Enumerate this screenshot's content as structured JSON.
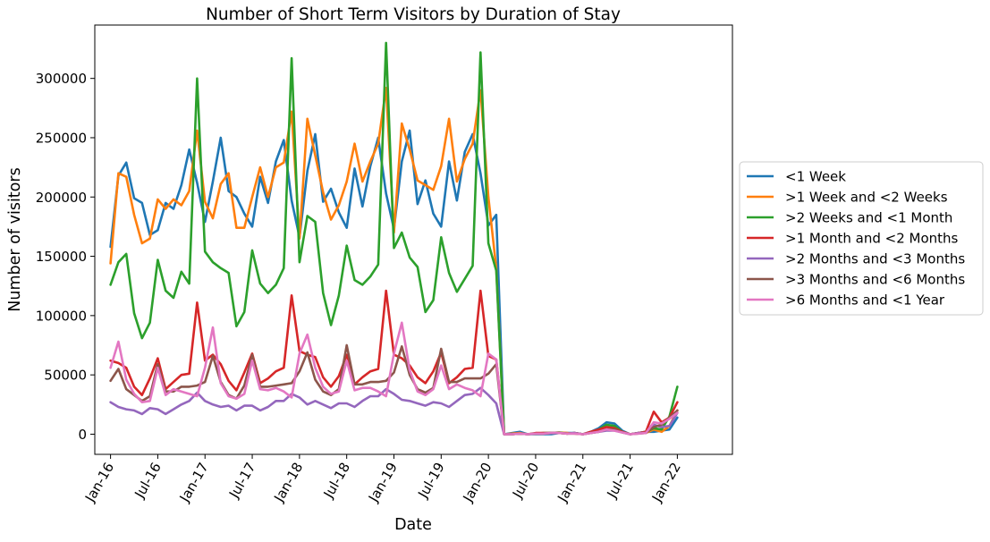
{
  "chart_data": {
    "type": "line",
    "title": "Number of Short Term Visitors by Duration of Stay",
    "xlabel": "Date",
    "ylabel": "Number of visitors",
    "x_start": "2016-01",
    "xlim": [
      "2015-11",
      "2022-08"
    ],
    "ylim": [
      -17000,
      345000
    ],
    "x_ticks": [
      {
        "date": "2016-01",
        "label": "Jan-16"
      },
      {
        "date": "2016-07",
        "label": "Jul-16"
      },
      {
        "date": "2017-01",
        "label": "Jan-17"
      },
      {
        "date": "2017-07",
        "label": "Jul-17"
      },
      {
        "date": "2018-01",
        "label": "Jan-18"
      },
      {
        "date": "2018-07",
        "label": "Jul-18"
      },
      {
        "date": "2019-01",
        "label": "Jan-19"
      },
      {
        "date": "2019-07",
        "label": "Jul-19"
      },
      {
        "date": "2020-01",
        "label": "Jan-20"
      },
      {
        "date": "2020-07",
        "label": "Jul-20"
      },
      {
        "date": "2021-01",
        "label": "Jan-21"
      },
      {
        "date": "2021-07",
        "label": "Jul-21"
      },
      {
        "date": "2022-01",
        "label": "Jan-22"
      }
    ],
    "y_ticks": [
      {
        "value": 0,
        "label": "0"
      },
      {
        "value": 50000,
        "label": "50000"
      },
      {
        "value": 100000,
        "label": "100000"
      },
      {
        "value": 150000,
        "label": "150000"
      },
      {
        "value": 200000,
        "label": "200000"
      },
      {
        "value": 250000,
        "label": "250000"
      },
      {
        "value": 300000,
        "label": "300000"
      }
    ],
    "grid": false,
    "legend_position": "outside-right",
    "series": [
      {
        "name": "<1 Week",
        "color": "#1f77b4",
        "values": [
          158000,
          218000,
          229000,
          199000,
          195000,
          168000,
          172000,
          195000,
          190000,
          210000,
          240000,
          212000,
          179000,
          213000,
          250000,
          205000,
          200000,
          186000,
          175000,
          217000,
          195000,
          230000,
          248000,
          197000,
          166000,
          222000,
          253000,
          196000,
          207000,
          187000,
          174000,
          224000,
          192000,
          226000,
          250000,
          203000,
          173000,
          230000,
          256000,
          194000,
          214000,
          186000,
          175000,
          230000,
          197000,
          238000,
          253000,
          220000,
          176000,
          185000,
          0,
          1000,
          2000,
          0,
          0,
          0,
          0,
          1000,
          1000,
          1000,
          0,
          2000,
          5000,
          10000,
          9000,
          3000,
          0,
          1000,
          2000,
          2000,
          3000,
          4000,
          14000
        ]
      },
      {
        "name": ">1 Week and <2 Weeks",
        "color": "#ff7f0e",
        "values": [
          144000,
          220000,
          217000,
          185000,
          161000,
          165000,
          198000,
          190000,
          198000,
          193000,
          205000,
          256000,
          196000,
          182000,
          211000,
          220000,
          174000,
          174000,
          200000,
          225000,
          200000,
          225000,
          229000,
          272000,
          165000,
          266000,
          235000,
          204000,
          181000,
          193000,
          213000,
          245000,
          213000,
          230000,
          245000,
          292000,
          170000,
          262000,
          240000,
          214000,
          210000,
          206000,
          226000,
          266000,
          213000,
          232000,
          245000,
          290000,
          200000,
          140000,
          0,
          500,
          1000,
          0,
          500,
          500,
          1000,
          1500,
          1000,
          500,
          0,
          1000,
          3000,
          7000,
          5000,
          2000,
          0,
          1000,
          1000,
          4000,
          2000,
          7000,
          20000
        ]
      },
      {
        "name": ">2 Weeks and <1 Month",
        "color": "#2ca02c",
        "values": [
          126000,
          145000,
          152000,
          102000,
          81000,
          94000,
          147000,
          121000,
          115000,
          137000,
          127000,
          300000,
          154000,
          145000,
          140000,
          136000,
          91000,
          103000,
          155000,
          127000,
          119000,
          126000,
          140000,
          317000,
          145000,
          184000,
          179000,
          119000,
          92000,
          117000,
          159000,
          130000,
          126000,
          133000,
          143000,
          330000,
          157000,
          170000,
          149000,
          141000,
          103000,
          113000,
          166000,
          136000,
          120000,
          131000,
          142000,
          322000,
          161000,
          138000,
          0,
          0,
          500,
          0,
          500,
          1000,
          1000,
          1500,
          500,
          1000,
          0,
          1500,
          4000,
          8000,
          7000,
          2000,
          0,
          1000,
          2000,
          5000,
          4000,
          15000,
          40000
        ]
      },
      {
        "name": ">1 Month and <2 Months",
        "color": "#d62728",
        "values": [
          62000,
          60000,
          56000,
          40000,
          33000,
          47000,
          64000,
          38000,
          44000,
          50000,
          51000,
          111000,
          62000,
          67000,
          59000,
          45000,
          37000,
          52000,
          68000,
          43000,
          47000,
          53000,
          56000,
          117000,
          70000,
          67000,
          65000,
          48000,
          40000,
          49000,
          67000,
          42000,
          48000,
          53000,
          55000,
          121000,
          67000,
          64000,
          58000,
          48000,
          43000,
          53000,
          69000,
          43000,
          48000,
          55000,
          56000,
          121000,
          66000,
          63000,
          0,
          0,
          500,
          0,
          1000,
          1000,
          1000,
          1000,
          500,
          1000,
          0,
          2000,
          4000,
          6000,
          5000,
          2000,
          0,
          1000,
          2000,
          19000,
          10000,
          14000,
          27000
        ]
      },
      {
        "name": ">2 Months and <3 Months",
        "color": "#9467bd",
        "values": [
          27000,
          23000,
          21000,
          20000,
          17000,
          22000,
          21000,
          17000,
          21000,
          25000,
          28000,
          35000,
          28000,
          25000,
          23000,
          24000,
          20000,
          24000,
          24000,
          20000,
          23000,
          28000,
          28000,
          34000,
          31000,
          25000,
          28000,
          25000,
          22000,
          26000,
          26000,
          23000,
          28000,
          32000,
          32000,
          38000,
          34000,
          29000,
          28000,
          26000,
          24000,
          27000,
          26000,
          23000,
          28000,
          33000,
          34000,
          39000,
          33000,
          26000,
          0,
          0,
          500,
          0,
          500,
          500,
          1000,
          1000,
          500,
          1000,
          0,
          1000,
          2000,
          3000,
          3000,
          1500,
          0,
          1000,
          1000,
          8000,
          6000,
          7000,
          18000
        ]
      },
      {
        "name": ">3 Months and <6 Months",
        "color": "#8c564b",
        "values": [
          45000,
          55000,
          38000,
          33000,
          28000,
          32000,
          59000,
          36000,
          36000,
          40000,
          40000,
          41000,
          44000,
          66000,
          44000,
          33000,
          30000,
          41000,
          67000,
          40000,
          40000,
          41000,
          42000,
          43000,
          53000,
          69000,
          46000,
          36000,
          33000,
          38000,
          75000,
          42000,
          42000,
          44000,
          44000,
          45000,
          52000,
          74000,
          50000,
          38000,
          35000,
          39000,
          72000,
          44000,
          44000,
          47000,
          47000,
          47000,
          51000,
          59000,
          0,
          0,
          500,
          0,
          500,
          500,
          1000,
          1000,
          500,
          500,
          0,
          1000,
          2000,
          4000,
          4000,
          1500,
          0,
          500,
          1000,
          6000,
          8000,
          14000,
          20000
        ]
      },
      {
        "name": ">6 Months and <1 Year",
        "color": "#e377c2",
        "values": [
          56000,
          78000,
          46000,
          34000,
          27000,
          28000,
          56000,
          33000,
          38000,
          36000,
          34000,
          32000,
          56000,
          90000,
          43000,
          32000,
          30000,
          34000,
          62000,
          38000,
          37000,
          39000,
          36000,
          31000,
          68000,
          84000,
          56000,
          40000,
          34000,
          36000,
          62000,
          37000,
          39000,
          39000,
          36000,
          32000,
          68000,
          94000,
          54000,
          36000,
          33000,
          38000,
          58000,
          38000,
          42000,
          39000,
          37000,
          32000,
          68000,
          63000,
          0,
          0,
          500,
          0,
          500,
          500,
          1000,
          1000,
          500,
          500,
          0,
          1000,
          2000,
          4000,
          3000,
          1500,
          0,
          500,
          1000,
          10000,
          9000,
          13000,
          18000
        ]
      }
    ]
  }
}
